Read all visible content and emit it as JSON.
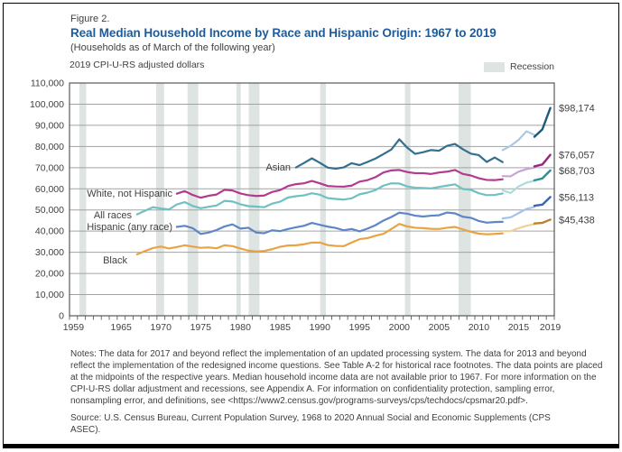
{
  "header": {
    "figure_label": "Figure 2.",
    "title": "Real Median Household Income by Race and Hispanic Origin: 1967 to 2019",
    "subtitle": "(Households as of March of the following year)"
  },
  "notes": "Notes: The data for 2017 and beyond reflect the implementation of an updated processing system. The data for 2013 and beyond reflect the implementation of the redesigned income questions. See Table A-2 for historical race footnotes. The data points are placed at the midpoints of the respective years. Median household income data are not available prior to 1967. For more information on the CPI-U-RS dollar adjustment and recessions, see Appendix A. For information on confidentiality protection, sampling error, nonsampling error, and definitions, see <https://www2.census.gov/programs-surveys/cps/techdocs/cpsmar20.pdf>.",
  "source": "Source: U.S. Census Bureau, Current Population Survey, 1968 to 2020 Annual Social and Economic Supplements (CPS ASEC).",
  "chart_data": {
    "type": "line",
    "title": "Real Median Household Income by Race and Hispanic Origin: 1967 to 2019",
    "y_axis_title": "2019 CPI-U-RS adjusted dollars",
    "legend_label": "Recession",
    "xlim": [
      1959,
      2020
    ],
    "ylim": [
      0,
      110000
    ],
    "y_tick_labels": [
      "0",
      "10,000",
      "20,000",
      "30,000",
      "40,000",
      "50,000",
      "60,000",
      "70,000",
      "80,000",
      "90,000",
      "100,000",
      "110,000"
    ],
    "x_tick_years": [
      1959,
      1965,
      1970,
      1975,
      1980,
      1985,
      1990,
      1995,
      2000,
      2005,
      2010,
      2015,
      2019
    ],
    "grid": true,
    "recession_band_color": "#dee4e2",
    "recessions": [
      [
        1960.25,
        1961.1
      ],
      [
        1969.9,
        1970.9
      ],
      [
        1973.85,
        1975.2
      ],
      [
        1980.0,
        1980.55
      ],
      [
        1981.55,
        1982.9
      ],
      [
        1990.55,
        1991.25
      ],
      [
        2001.2,
        2001.9
      ],
      [
        2007.95,
        2009.5
      ]
    ],
    "segment_phases_note": "main = pre-2013 questions; redesign = 2013-2017 redesigned income questions (lighter line); updated = 2017-2019 updated processing system (darker line)",
    "series": [
      {
        "key": "asian",
        "name": "Asian",
        "end_label": "$98,174",
        "final_value": 98174,
        "colors": {
          "main": "#336f8f",
          "redesign": "#abc8e2",
          "updated": "#1d5a78"
        },
        "segments": [
          {
            "phase": "main",
            "start_year": 1987,
            "values": [
              70100,
              72200,
              74400,
              72300,
              70000,
              69500,
              70100,
              72100,
              71200,
              72700,
              74300,
              76400,
              78600,
              83400,
              79400,
              76500,
              77300,
              78300,
              78000,
              80300,
              81200,
              78700,
              76600,
              75900,
              72700,
              74800,
              72600
            ]
          },
          {
            "phase": "redesign",
            "start_year": 2013,
            "values": [
              78300,
              80300,
              83100,
              87200,
              85500
            ]
          },
          {
            "phase": "updated",
            "start_year": 2017,
            "values": [
              84600,
              88100,
              98174
            ]
          }
        ]
      },
      {
        "key": "white_nh",
        "name": "White, not Hispanic",
        "end_label": "$76,057",
        "final_value": 76057,
        "colors": {
          "main": "#b23a90",
          "redesign": "#c9a3d3",
          "updated": "#93267f"
        },
        "segments": [
          {
            "phase": "main",
            "start_year": 1972,
            "values": [
              57700,
              58900,
              57100,
              55800,
              56700,
              57300,
              59500,
              59200,
              57800,
              57000,
              56600,
              56800,
              58500,
              59400,
              61300,
              62200,
              62600,
              63700,
              62600,
              61300,
              61100,
              61000,
              61500,
              63400,
              64100,
              65500,
              67700,
              68700,
              68900,
              67900,
              67400,
              67400,
              67000,
              67700,
              68100,
              68900,
              67000,
              66300,
              65000,
              64200,
              64100,
              64500
            ]
          },
          {
            "phase": "redesign",
            "start_year": 2013,
            "values": [
              66000,
              65900,
              68100,
              69300,
              70000
            ]
          },
          {
            "phase": "updated",
            "start_year": 2017,
            "values": [
              70600,
              71500,
              76057
            ]
          }
        ]
      },
      {
        "key": "all_races",
        "name": "All races",
        "end_label": "$68,703",
        "final_value": 68703,
        "colors": {
          "main": "#6ec1c3",
          "redesign": "#abdcda",
          "updated": "#2f8f92"
        },
        "segments": [
          {
            "phase": "main",
            "start_year": 1967,
            "values": [
              47900,
              49600,
              51300,
              50700,
              50200,
              52600,
              53700,
              51900,
              50800,
              51500,
              52100,
              54300,
              54000,
              52700,
              51800,
              51600,
              51300,
              53000,
              53900,
              55900,
              56500,
              56900,
              57900,
              57200,
              55600,
              55200,
              54900,
              55500,
              57400,
              58200,
              59400,
              61500,
              62600,
              62500,
              61100,
              60500,
              60400,
              60200,
              60900,
              61500,
              62100,
              59900,
              59500,
              57900,
              57000,
              57100,
              57800
            ]
          },
          {
            "phase": "redesign",
            "start_year": 2013,
            "values": [
              59300,
              58000,
              61100,
              62900,
              63800
            ]
          },
          {
            "phase": "updated",
            "start_year": 2017,
            "values": [
              64000,
              64900,
              68703
            ]
          }
        ]
      },
      {
        "key": "hispanic",
        "name": "Hispanic (any race)",
        "end_label": "$56,113",
        "final_value": 56113,
        "colors": {
          "main": "#5e86c6",
          "redesign": "#a5c2e8",
          "updated": "#3d64ac"
        },
        "segments": [
          {
            "phase": "main",
            "start_year": 1972,
            "values": [
              42000,
              42500,
              41400,
              38700,
              39300,
              40500,
              42200,
              43200,
              41200,
              41600,
              39300,
              39000,
              40400,
              40000,
              41000,
              41800,
              42500,
              43900,
              43000,
              42100,
              41500,
              40400,
              41000,
              39900,
              41200,
              42800,
              45000,
              46700,
              48700,
              48200,
              47300,
              46900,
              47300,
              47500,
              48800,
              48400,
              46800,
              46300,
              44800,
              44000,
              44300,
              44400
            ]
          },
          {
            "phase": "redesign",
            "start_year": 2013,
            "values": [
              46000,
              46500,
              48500,
              50500,
              51400
            ]
          },
          {
            "phase": "updated",
            "start_year": 2017,
            "values": [
              52000,
              52500,
              56113
            ]
          }
        ]
      },
      {
        "key": "black",
        "name": "Black",
        "end_label": "$45,438",
        "final_value": 45438,
        "colors": {
          "main": "#e9a342",
          "redesign": "#f2cf98",
          "updated": "#bf7f2b"
        },
        "segments": [
          {
            "phase": "main",
            "start_year": 1967,
            "values": [
              29000,
              30600,
              32000,
              32700,
              31800,
              32500,
              33300,
              32700,
              32100,
              32300,
              31900,
              33300,
              32900,
              31800,
              30800,
              30400,
              30600,
              31500,
              32600,
              33200,
              33300,
              33800,
              34600,
              34600,
              33400,
              33000,
              32900,
              34600,
              36200,
              36700,
              37800,
              38700,
              41000,
              43400,
              42200,
              41600,
              41400,
              41100,
              41000,
              41600,
              42000,
              40800,
              39700,
              38800,
              38500,
              38700,
              38900
            ]
          },
          {
            "phase": "redesign",
            "start_year": 2013,
            "values": [
              40000,
              40000,
              41400,
              42500,
              43300
            ]
          },
          {
            "phase": "updated",
            "start_year": 2017,
            "values": [
              43600,
              43900,
              45438
            ]
          }
        ]
      }
    ]
  }
}
